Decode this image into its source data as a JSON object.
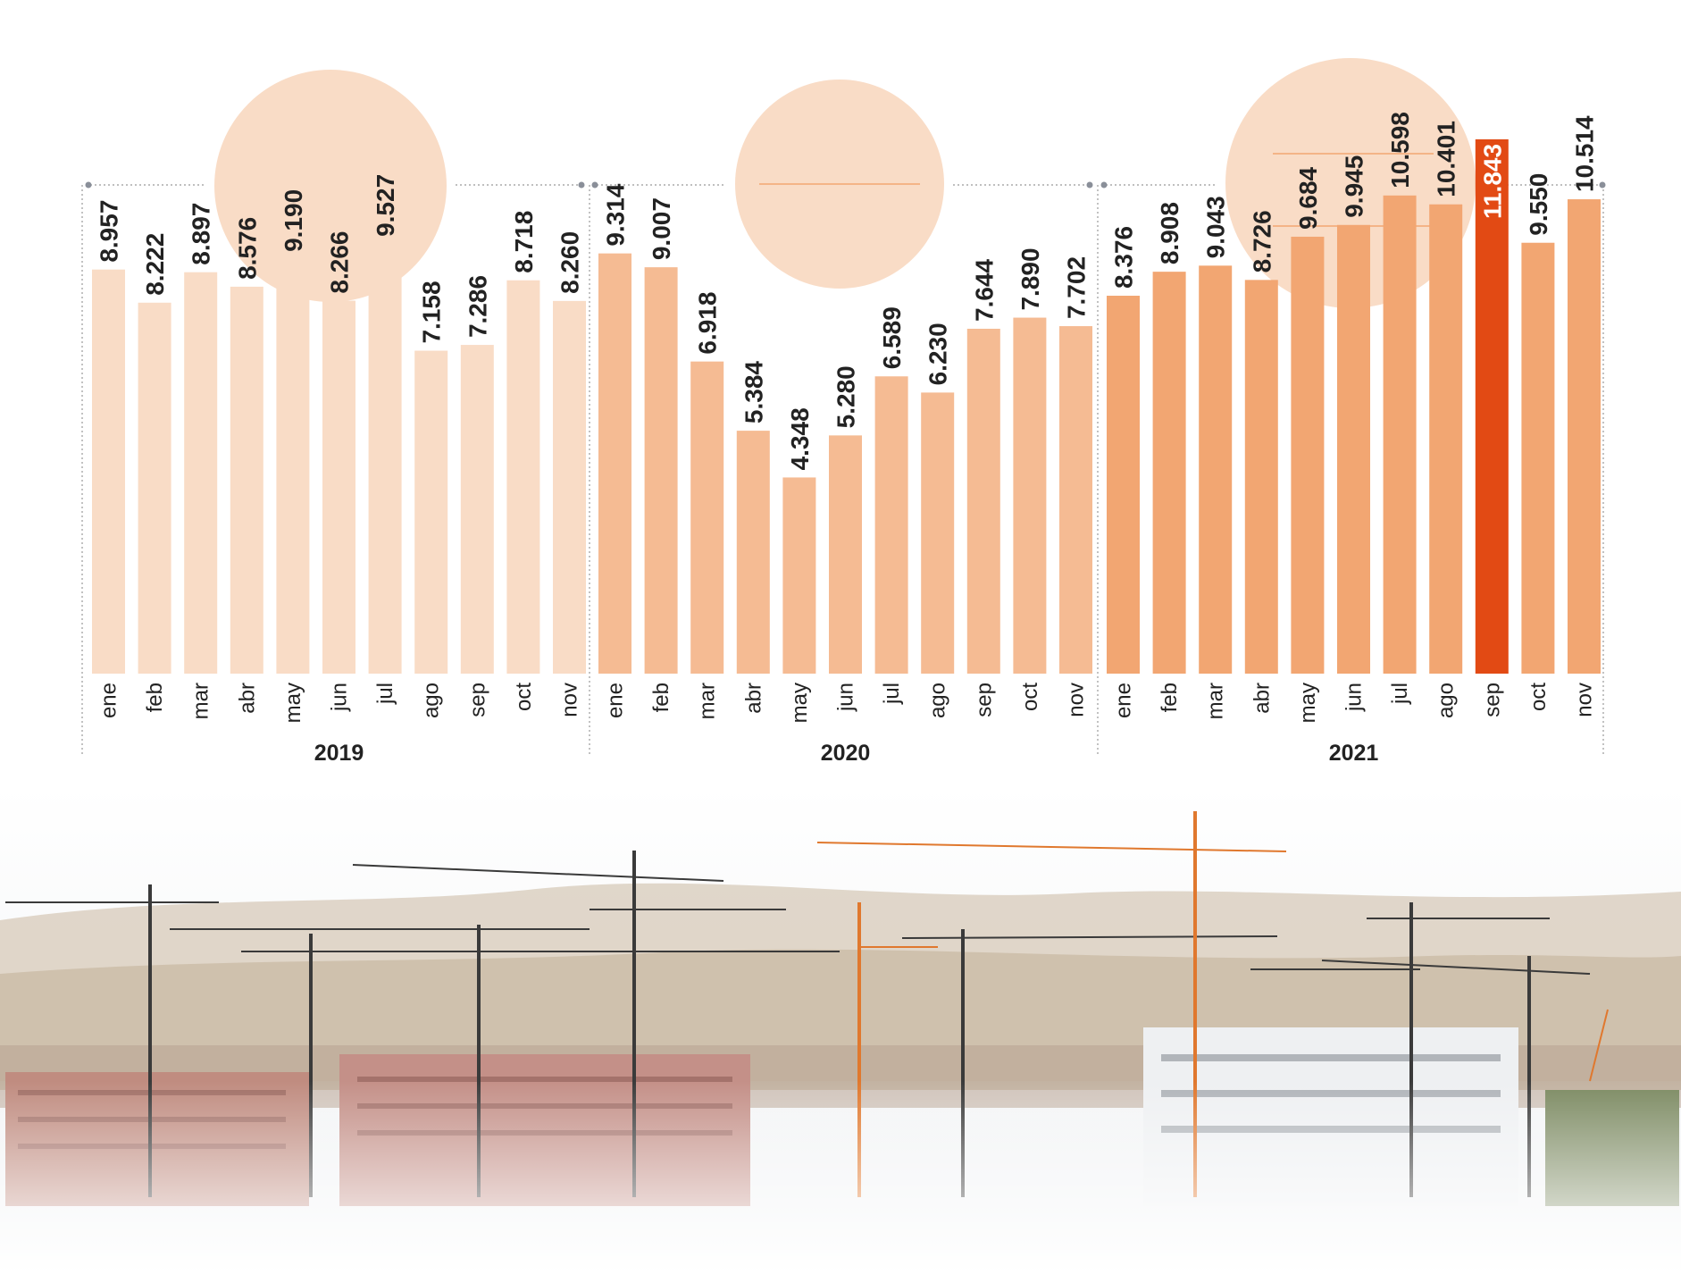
{
  "chart_data": {
    "type": "bar",
    "groups": [
      {
        "year": "2019",
        "categories": [
          "ene",
          "feb",
          "mar",
          "abr",
          "may",
          "jun",
          "jul",
          "ago",
          "sep",
          "oct",
          "nov"
        ],
        "values": [
          8957,
          8222,
          8897,
          8576,
          9190,
          8266,
          9527,
          7158,
          7286,
          8718,
          8260
        ],
        "labels": [
          "8.957",
          "8.222",
          "8.897",
          "8.576",
          "9.190",
          "8.266",
          "9.527",
          "7.158",
          "7.286",
          "8.718",
          "8.260"
        ],
        "color": "#f9dcc6"
      },
      {
        "year": "2020",
        "categories": [
          "ene",
          "feb",
          "mar",
          "abr",
          "may",
          "jun",
          "jul",
          "ago",
          "sep",
          "oct",
          "nov"
        ],
        "values": [
          9314,
          9007,
          6918,
          5384,
          4348,
          5280,
          6589,
          6230,
          7644,
          7890,
          7702
        ],
        "labels": [
          "9.314",
          "9.007",
          "6.918",
          "5.384",
          "4.348",
          "5.280",
          "6.589",
          "6.230",
          "7.644",
          "7.890",
          "7.702"
        ],
        "color": "#f5bb93"
      },
      {
        "year": "2021",
        "categories": [
          "ene",
          "feb",
          "mar",
          "abr",
          "may",
          "jun",
          "jul",
          "ago",
          "sep",
          "oct",
          "nov"
        ],
        "values": [
          8376,
          8908,
          9043,
          8726,
          9684,
          9945,
          10598,
          10401,
          11843,
          9550,
          10514
        ],
        "labels": [
          "8.376",
          "8.908",
          "9.043",
          "8.726",
          "9.684",
          "9.945",
          "10.598",
          "10.401",
          "11.843",
          "9.550",
          "10.514"
        ],
        "color": "#f2a672",
        "highlight_index": 8,
        "highlight_color": "#e24a14"
      }
    ],
    "ylim": [
      0,
      12000
    ],
    "grid": false,
    "legend": "none"
  },
  "colors": {
    "circle_fill": "#f9dcc6",
    "circle_line": "#f2a672",
    "divider": "#999999",
    "text": "#222222"
  },
  "decor": {
    "background_image": "construction-cranes-cityscape-photo"
  }
}
